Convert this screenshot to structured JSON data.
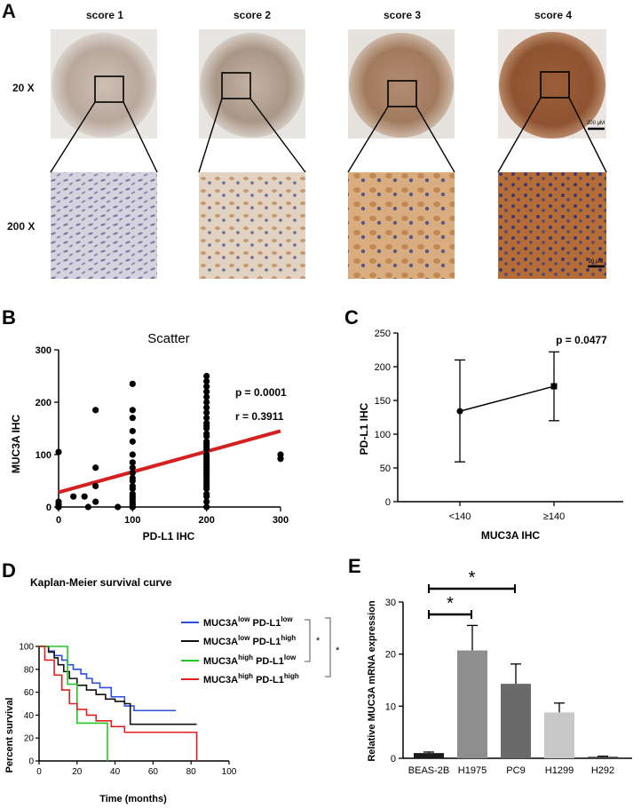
{
  "panel_a": {
    "letter": "A",
    "scores": [
      "score 1",
      "score 2",
      "score 3",
      "score 4"
    ],
    "magnifications": [
      "20 X",
      "200 X"
    ],
    "scalebar_top": "200 μM",
    "scalebar_bottom": "20 μM"
  },
  "chart_data": [
    {
      "panel": "B",
      "type": "scatter",
      "title": "Scatter",
      "xlabel": "PD-L1 IHC",
      "ylabel": "MUC3A IHC",
      "xlim": [
        0,
        300
      ],
      "ylim": [
        0,
        300
      ],
      "xticks": [
        "0",
        "100",
        "200",
        "300"
      ],
      "yticks": [
        "0",
        "100",
        "200",
        "300"
      ],
      "annotations": [
        "p = 0.0001",
        "r = 0.3911"
      ],
      "fit_line": {
        "x": [
          0,
          300
        ],
        "y": [
          28,
          145
        ]
      },
      "points": {
        "x": [
          0,
          0,
          0,
          0,
          0,
          0,
          20,
          35,
          40,
          50,
          50,
          50,
          50,
          80,
          100,
          100,
          100,
          100,
          100,
          100,
          100,
          100,
          100,
          100,
          100,
          100,
          100,
          100,
          100,
          100,
          100,
          100,
          100,
          100,
          100,
          100,
          200,
          200,
          200,
          200,
          200,
          200,
          200,
          200,
          200,
          200,
          200,
          200,
          200,
          200,
          200,
          200,
          200,
          200,
          200,
          200,
          200,
          200,
          200,
          200,
          200,
          200,
          200,
          200,
          200,
          200,
          200,
          200,
          200,
          200,
          200,
          200,
          300,
          300
        ],
        "y": [
          105,
          10,
          5,
          2,
          0,
          0,
          20,
          20,
          0,
          185,
          75,
          40,
          10,
          0,
          235,
          185,
          170,
          145,
          125,
          100,
          85,
          75,
          65,
          55,
          50,
          40,
          35,
          25,
          20,
          15,
          10,
          5,
          5,
          0,
          0,
          0,
          250,
          240,
          230,
          220,
          210,
          200,
          190,
          180,
          170,
          160,
          155,
          150,
          140,
          135,
          125,
          120,
          115,
          110,
          100,
          95,
          90,
          85,
          80,
          75,
          70,
          65,
          60,
          55,
          50,
          45,
          40,
          35,
          25,
          20,
          10,
          0,
          100,
          92
        ]
      }
    },
    {
      "panel": "C",
      "type": "line",
      "title": "",
      "xlabel": "MUC3A  IHC",
      "ylabel": "PD-L1 IHC",
      "ylim": [
        0,
        250
      ],
      "yticks": [
        "0",
        "50",
        "100",
        "150",
        "200",
        "250"
      ],
      "categories": [
        "<140",
        "≥140"
      ],
      "values": [
        134,
        171
      ],
      "err_low": [
        59,
        120
      ],
      "err_high": [
        210,
        222
      ],
      "annotation": "p = 0.0477"
    },
    {
      "panel": "D",
      "type": "line",
      "title": "Kaplan-Meier survival curve",
      "xlabel": "Time (months)",
      "ylabel": "Percent survival",
      "xlim": [
        0,
        100
      ],
      "ylim": [
        0,
        100
      ],
      "xticks": [
        "0",
        "20",
        "40",
        "60",
        "80",
        "100"
      ],
      "yticks": [
        "0",
        "20",
        "40",
        "60",
        "80",
        "100"
      ],
      "series": [
        {
          "legend_main": "MUC3A",
          "sup1": "low",
          "mid": " PD-L1",
          "sup2": "low",
          "color": "#2b50e0",
          "x": [
            0,
            5,
            8,
            12,
            15,
            18,
            22,
            25,
            28,
            32,
            38,
            45,
            50,
            72
          ],
          "y": [
            100,
            96,
            92,
            88,
            84,
            80,
            76,
            72,
            68,
            64,
            56,
            48,
            44,
            44
          ]
        },
        {
          "legend_main": "MUC3A",
          "sup1": "low",
          "mid": " PD-L1",
          "sup2": "high",
          "color": "#111111",
          "x": [
            0,
            5,
            8,
            10,
            13,
            16,
            20,
            25,
            30,
            35,
            40,
            45,
            48,
            83
          ],
          "y": [
            100,
            95,
            90,
            84,
            78,
            72,
            66,
            62,
            58,
            54,
            52,
            50,
            32,
            32
          ]
        },
        {
          "legend_main": "MUC3A",
          "sup1": "high",
          "mid": " PD-L1",
          "sup2": "low",
          "color": "#22c822",
          "x": [
            0,
            15,
            20,
            35,
            36
          ],
          "y": [
            100,
            67,
            33,
            33,
            0
          ]
        },
        {
          "legend_main": "MUC3A",
          "sup1": "high",
          "mid": " PD-L1",
          "sup2": "high",
          "color": "#e02020",
          "x": [
            0,
            3,
            8,
            12,
            16,
            20,
            25,
            30,
            38,
            45,
            83,
            83
          ],
          "y": [
            100,
            88,
            75,
            62,
            50,
            45,
            40,
            35,
            30,
            25,
            25,
            0
          ]
        }
      ],
      "sig_marks": [
        "*",
        "*"
      ]
    },
    {
      "panel": "E",
      "type": "bar",
      "title": "",
      "xlabel": "",
      "ylabel": "Relative MUC3A mRNA expression",
      "ylim": [
        0,
        30
      ],
      "yticks": [
        "0",
        "10",
        "20",
        "30"
      ],
      "categories": [
        "BEAS-2B",
        "H1975",
        "PC9",
        "H1299",
        "H292"
      ],
      "values": [
        1.0,
        20.7,
        14.3,
        8.8,
        0.3
      ],
      "errors": [
        0.2,
        4.8,
        3.8,
        1.8,
        0.1
      ],
      "colors": [
        "#1a1a1a",
        "#8e8e8e",
        "#6a6a6a",
        "#c8c8c8",
        "#444444"
      ],
      "sig_marks": [
        "*",
        "*"
      ]
    }
  ]
}
